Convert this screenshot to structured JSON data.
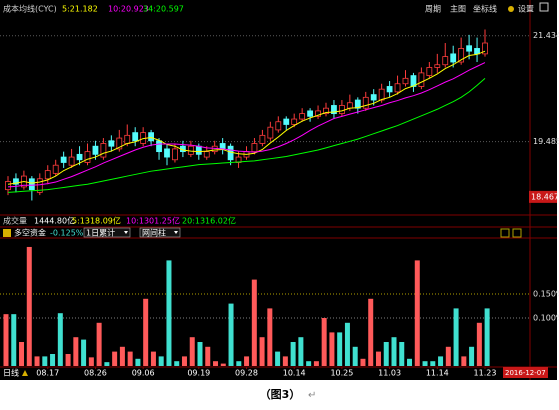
{
  "toolbar": [
    "周期",
    "主图",
    "坐标线",
    "设置"
  ],
  "caption": "（图3）",
  "return_mark": "↵",
  "chart_data": [
    {
      "type": "candlestick",
      "title": "成本均线(CYC)",
      "ohlc": [
        [
          18.6,
          18.85,
          18.5,
          18.75
        ],
        [
          18.8,
          18.9,
          18.55,
          18.7
        ],
        [
          18.65,
          18.95,
          18.6,
          18.85
        ],
        [
          18.8,
          18.85,
          18.4,
          18.6
        ],
        [
          18.55,
          18.9,
          18.5,
          18.8
        ],
        [
          18.8,
          19.05,
          18.7,
          18.95
        ],
        [
          18.9,
          19.15,
          18.85,
          19.05
        ],
        [
          19.2,
          19.3,
          19.0,
          19.1
        ],
        [
          19.05,
          19.35,
          19.0,
          19.2
        ],
        [
          19.25,
          19.4,
          19.05,
          19.15
        ],
        [
          19.1,
          19.45,
          19.05,
          19.3
        ],
        [
          19.4,
          19.5,
          19.15,
          19.25
        ],
        [
          19.2,
          19.55,
          19.15,
          19.45
        ],
        [
          19.5,
          19.6,
          19.3,
          19.4
        ],
        [
          19.35,
          19.7,
          19.3,
          19.55
        ],
        [
          19.45,
          19.8,
          19.4,
          19.6
        ],
        [
          19.65,
          19.75,
          19.4,
          19.5
        ],
        [
          19.45,
          19.75,
          19.4,
          19.65
        ],
        [
          19.65,
          19.7,
          19.4,
          19.5
        ],
        [
          19.5,
          19.55,
          19.15,
          19.3
        ],
        [
          19.35,
          19.45,
          19.05,
          19.2
        ],
        [
          19.15,
          19.45,
          19.1,
          19.35
        ],
        [
          19.4,
          19.5,
          19.2,
          19.3
        ],
        [
          19.25,
          19.5,
          19.2,
          19.4
        ],
        [
          19.4,
          19.45,
          19.15,
          19.25
        ],
        [
          19.2,
          19.4,
          19.15,
          19.3
        ],
        [
          19.3,
          19.5,
          19.25,
          19.4
        ],
        [
          19.45,
          19.55,
          19.25,
          19.35
        ],
        [
          19.4,
          19.45,
          19.05,
          19.15
        ],
        [
          19.1,
          19.3,
          19.0,
          19.2
        ],
        [
          19.2,
          19.4,
          19.15,
          19.3
        ],
        [
          19.3,
          19.55,
          19.25,
          19.45
        ],
        [
          19.45,
          19.7,
          19.4,
          19.6
        ],
        [
          19.55,
          19.85,
          19.5,
          19.75
        ],
        [
          19.7,
          19.95,
          19.65,
          19.85
        ],
        [
          19.9,
          19.95,
          19.7,
          19.8
        ],
        [
          19.8,
          20.0,
          19.75,
          19.9
        ],
        [
          19.9,
          20.1,
          19.85,
          20.0
        ],
        [
          20.05,
          20.1,
          19.85,
          19.95
        ],
        [
          19.95,
          20.15,
          19.9,
          20.05
        ],
        [
          20.0,
          20.2,
          19.95,
          20.1
        ],
        [
          20.15,
          20.25,
          19.9,
          20.0
        ],
        [
          20.0,
          20.25,
          19.95,
          20.15
        ],
        [
          20.1,
          20.35,
          20.05,
          20.2
        ],
        [
          20.25,
          20.3,
          20.0,
          20.1
        ],
        [
          20.1,
          20.4,
          20.05,
          20.3
        ],
        [
          20.35,
          20.45,
          20.15,
          20.25
        ],
        [
          20.25,
          20.55,
          20.2,
          20.45
        ],
        [
          20.5,
          20.6,
          20.3,
          20.4
        ],
        [
          20.4,
          20.7,
          20.35,
          20.55
        ],
        [
          20.55,
          20.8,
          20.5,
          20.65
        ],
        [
          20.7,
          20.75,
          20.4,
          20.5
        ],
        [
          20.5,
          20.85,
          20.45,
          20.75
        ],
        [
          20.7,
          20.95,
          20.65,
          20.85
        ],
        [
          20.85,
          21.1,
          20.75,
          20.9
        ],
        [
          20.9,
          21.3,
          20.85,
          21.05
        ],
        [
          21.1,
          21.25,
          20.85,
          20.95
        ],
        [
          20.95,
          21.4,
          20.9,
          21.2
        ],
        [
          21.25,
          21.45,
          21.0,
          21.15
        ],
        [
          21.2,
          21.4,
          20.95,
          21.1
        ],
        [
          21.1,
          21.55,
          21.05,
          21.3
        ]
      ],
      "up_color": "#ff3c3c",
      "down_color": "#54fcfc",
      "series": [
        {
          "name": "5:21.182",
          "color": "#ffff00",
          "values": [
            18.7,
            18.72,
            18.75,
            18.72,
            18.74,
            18.78,
            18.85,
            18.95,
            19.02,
            19.09,
            19.16,
            19.2,
            19.27,
            19.31,
            19.38,
            19.45,
            19.48,
            19.54,
            19.56,
            19.51,
            19.43,
            19.4,
            19.33,
            19.31,
            19.3,
            19.31,
            19.33,
            19.34,
            19.29,
            19.26,
            19.25,
            19.27,
            19.34,
            19.46,
            19.57,
            19.69,
            19.78,
            19.86,
            19.92,
            19.97,
            20.02,
            20.03,
            20.05,
            20.1,
            20.11,
            20.15,
            20.19,
            20.26,
            20.3,
            20.37,
            20.46,
            20.51,
            20.58,
            20.65,
            20.73,
            20.83,
            20.9,
            20.99,
            21.07,
            21.09,
            21.15
          ]
        },
        {
          "name": "10:20.923",
          "color": "#ff00ff",
          "values": [
            18.65,
            18.66,
            18.68,
            18.68,
            18.69,
            18.71,
            18.74,
            18.79,
            18.84,
            18.9,
            18.96,
            19.02,
            19.09,
            19.15,
            19.21,
            19.27,
            19.33,
            19.38,
            19.42,
            19.44,
            19.44,
            19.44,
            19.43,
            19.42,
            19.4,
            19.37,
            19.36,
            19.35,
            19.33,
            19.31,
            19.3,
            19.29,
            19.31,
            19.34,
            19.39,
            19.45,
            19.52,
            19.6,
            19.69,
            19.77,
            19.84,
            19.91,
            19.95,
            19.99,
            20.03,
            20.07,
            20.11,
            20.15,
            20.2,
            20.24,
            20.29,
            20.33,
            20.38,
            20.44,
            20.51,
            20.58,
            20.64,
            20.72,
            20.8,
            20.87,
            20.94
          ]
        },
        {
          "name": "34:20.597",
          "color": "#00ff00",
          "values": [
            18.55,
            18.56,
            18.57,
            18.58,
            18.59,
            18.6,
            18.62,
            18.64,
            18.66,
            18.68,
            18.7,
            18.73,
            18.76,
            18.79,
            18.82,
            18.85,
            18.88,
            18.91,
            18.94,
            18.96,
            18.98,
            19.0,
            19.02,
            19.04,
            19.06,
            19.07,
            19.08,
            19.09,
            19.1,
            19.11,
            19.12,
            19.13,
            19.15,
            19.17,
            19.19,
            19.21,
            19.24,
            19.27,
            19.3,
            19.33,
            19.37,
            19.41,
            19.45,
            19.49,
            19.53,
            19.58,
            19.63,
            19.68,
            19.73,
            19.78,
            19.84,
            19.9,
            19.96,
            20.02,
            20.08,
            20.15,
            20.22,
            20.3,
            20.4,
            20.52,
            20.65
          ]
        }
      ],
      "ylim": [
        18.17,
        22.0
      ],
      "yticks": [
        21.434,
        19.485
      ],
      "low_label": 18.467,
      "grid": true,
      "volume_labels": [
        "成交量",
        "1444.80亿",
        "5:1318.09亿",
        "10:1301.25亿",
        "20:1316.02亿"
      ]
    },
    {
      "type": "bar",
      "title": "多空资金",
      "current_label": "-0.125%",
      "selectors": [
        "1日累计",
        "网间柱"
      ],
      "values": [
        0.108,
        0.108,
        0.05,
        0.248,
        0.02,
        0.02,
        0.025,
        0.11,
        0.025,
        0.06,
        0.055,
        0.018,
        0.09,
        0.008,
        0.03,
        0.04,
        0.03,
        0.015,
        0.14,
        0.03,
        0.02,
        0.22,
        0.01,
        0.02,
        0.06,
        0.05,
        0.04,
        0.01,
        0.005,
        0.13,
        0.01,
        0.02,
        0.18,
        0.06,
        0.12,
        0.03,
        0.02,
        0.05,
        0.06,
        0.01,
        0.01,
        0.1,
        0.07,
        0.07,
        0.09,
        0.04,
        0.015,
        0.14,
        0.03,
        0.05,
        0.06,
        0.05,
        0.015,
        0.22,
        0.01,
        0.01,
        0.02,
        0.04,
        0.12,
        0.02,
        0.04,
        0.09,
        0.12
      ],
      "colors": [
        "#ff5a5a",
        "#40e0d0",
        "#ff5a5a",
        "#ff5a5a",
        "#ff5a5a",
        "#40e0d0",
        "#40e0d0",
        "#40e0d0",
        "#ff5a5a",
        "#ff5a5a",
        "#40e0d0",
        "#ff5a5a",
        "#ff5a5a",
        "#40e0d0",
        "#ff5a5a",
        "#ff5a5a",
        "#ff5a5a",
        "#40e0d0",
        "#ff5a5a",
        "#ff5a5a",
        "#40e0d0",
        "#40e0d0",
        "#40e0d0",
        "#ff5a5a",
        "#ff5a5a",
        "#40e0d0",
        "#ff5a5a",
        "#ff5a5a",
        "#ff5a5a",
        "#40e0d0",
        "#40e0d0",
        "#ff5a5a",
        "#ff5a5a",
        "#ff5a5a",
        "#ff5a5a",
        "#40e0d0",
        "#ff5a5a",
        "#40e0d0",
        "#40e0d0",
        "#40e0d0",
        "#ff5a5a",
        "#ff5a5a",
        "#ff5a5a",
        "#40e0d0",
        "#40e0d0",
        "#40e0d0",
        "#ff5a5a",
        "#ff5a5a",
        "#ff5a5a",
        "#40e0d0",
        "#40e0d0",
        "#40e0d0",
        "#40e0d0",
        "#ff5a5a",
        "#40e0d0",
        "#40e0d0",
        "#40e0d0",
        "#ff5a5a",
        "#40e0d0",
        "#ff5a5a",
        "#40e0d0",
        "#ff5a5a",
        "#40e0d0"
      ],
      "ylim": [
        0,
        0.25
      ],
      "yticks": [
        {
          "value": 0.15,
          "label": "0.150%"
        },
        {
          "value": 0.1,
          "label": "0.100%"
        }
      ],
      "xticks": [
        {
          "value": 5,
          "label": "08.17"
        },
        {
          "value": 11,
          "label": "08.26"
        },
        {
          "value": 17,
          "label": "09.06"
        },
        {
          "value": 24,
          "label": "09.19"
        },
        {
          "value": 30,
          "label": "09.28"
        },
        {
          "value": 36,
          "label": "10.14"
        },
        {
          "value": 42,
          "label": "10.25"
        },
        {
          "value": 48,
          "label": "11.03"
        },
        {
          "value": 54,
          "label": "11.14"
        },
        {
          "value": 60,
          "label": "11.23"
        }
      ],
      "period_label": "日线",
      "date_label": "2016-12-07"
    }
  ]
}
